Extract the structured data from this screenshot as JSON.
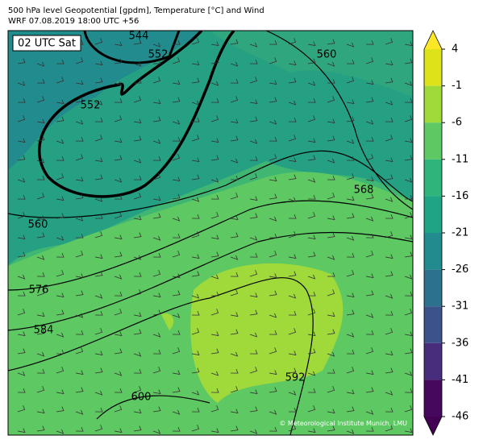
{
  "header": {
    "title": "500 hPa level Geopotential [gpdm], Temperature [°C] and Wind",
    "subtitle": "WRF 07.08.2019 18:00 UTC +56"
  },
  "map": {
    "time_label": "02 UTC Sat",
    "credit": "© Meteorological Institute Munich, LMU",
    "contour_labels": [
      "544",
      "552",
      "552",
      "560",
      "560",
      "568",
      "576",
      "584",
      "592",
      "600"
    ]
  },
  "colorbar": {
    "lim": [
      -46,
      4
    ],
    "ticks": [
      4,
      -1,
      -6,
      -11,
      -16,
      -21,
      -26,
      -31,
      -36,
      -41,
      -46
    ],
    "colors": [
      "#dde318",
      "#9fda3a",
      "#5ec962",
      "#2fb47c",
      "#20a486",
      "#228b8d",
      "#2c728e",
      "#3b528b",
      "#472d7b",
      "#46085c"
    ],
    "over_color": "#fde725",
    "under_color": "#440154"
  }
}
